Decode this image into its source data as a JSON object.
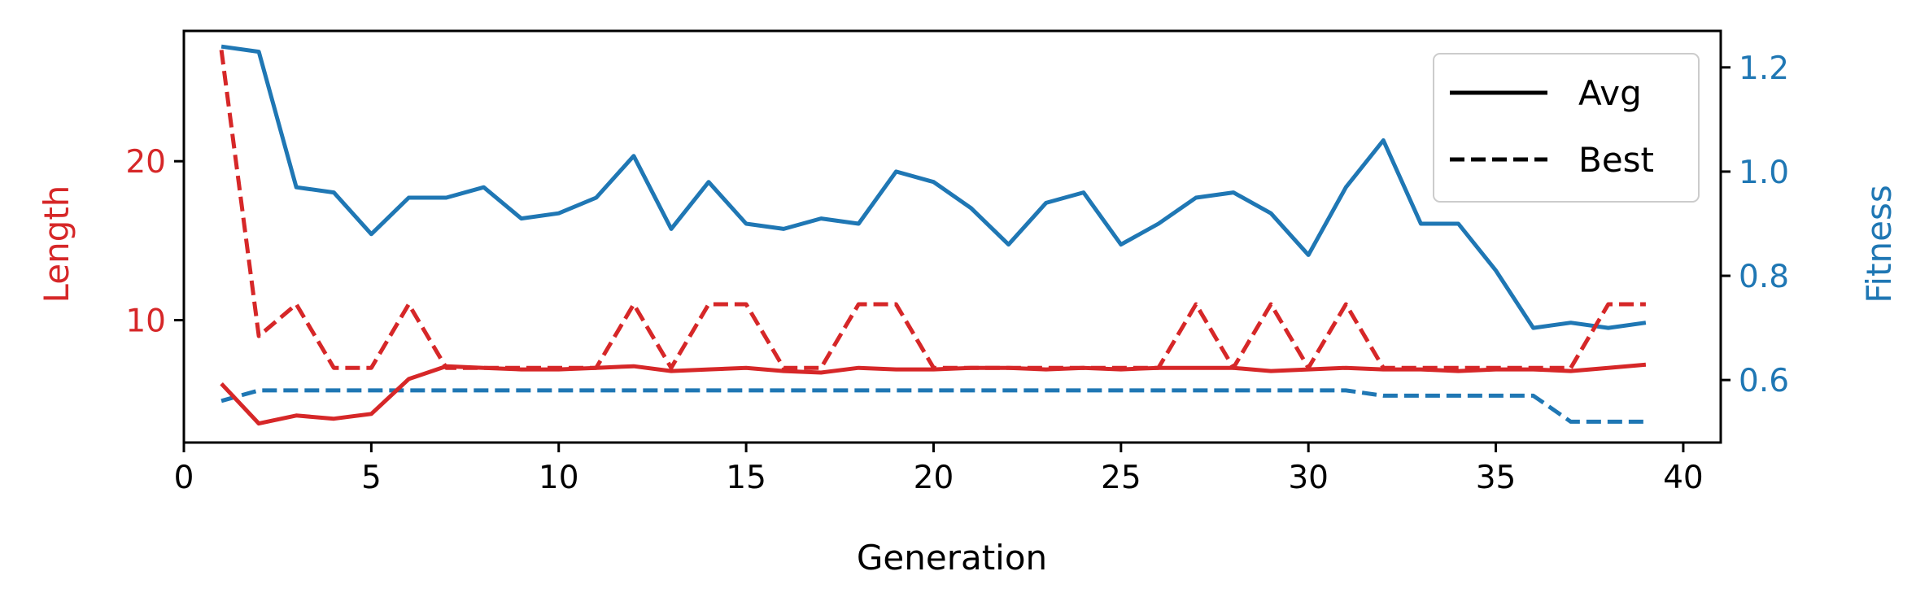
{
  "chart_data": {
    "type": "line",
    "xlabel": "Generation",
    "ylabel_left": "Length",
    "ylabel_right": "Fitness",
    "xlim": [
      0,
      41
    ],
    "ylim_left": [
      2.3,
      28.2
    ],
    "ylim_right": [
      0.48,
      1.27
    ],
    "xticks": [
      0,
      5,
      10,
      15,
      20,
      25,
      30,
      35,
      40
    ],
    "yticks_left": [
      10,
      20
    ],
    "yticks_right": [
      0.6,
      0.8,
      1.0,
      1.2
    ],
    "grid": false,
    "legend": {
      "placement": "top-right",
      "entries": [
        {
          "label": "Avg",
          "style": "solid"
        },
        {
          "label": "Best",
          "style": "dashed"
        }
      ]
    },
    "colors": {
      "length": "#d62728",
      "fitness": "#1f77b4"
    },
    "x": [
      1,
      2,
      3,
      4,
      5,
      6,
      7,
      8,
      9,
      10,
      11,
      12,
      13,
      14,
      15,
      16,
      17,
      18,
      19,
      20,
      21,
      22,
      23,
      24,
      25,
      26,
      27,
      28,
      29,
      30,
      31,
      32,
      33,
      34,
      35,
      36,
      37,
      38,
      39
    ],
    "series": [
      {
        "axis": "left",
        "style": "solid",
        "color": "#d62728",
        "values": [
          6.0,
          3.5,
          4.0,
          3.8,
          4.1,
          6.3,
          7.1,
          7.0,
          6.9,
          6.9,
          7.0,
          7.1,
          6.8,
          6.9,
          7.0,
          6.8,
          6.7,
          7.0,
          6.9,
          6.9,
          7.0,
          7.0,
          6.9,
          7.0,
          6.9,
          7.0,
          7.0,
          7.0,
          6.8,
          6.9,
          7.0,
          6.9,
          6.9,
          6.8,
          6.9,
          6.9,
          6.8,
          7.0,
          7.2
        ]
      },
      {
        "axis": "left",
        "style": "dashed",
        "color": "#d62728",
        "values": [
          27,
          9,
          11,
          7,
          7,
          11,
          7,
          7,
          7,
          7,
          7,
          11,
          7,
          11,
          11,
          7,
          7,
          11,
          11,
          7,
          7,
          7,
          7,
          7,
          7,
          7,
          11,
          7,
          11,
          7,
          11,
          7,
          7,
          7,
          7,
          7,
          7,
          11,
          11
        ]
      },
      {
        "axis": "right",
        "style": "solid",
        "color": "#1f77b4",
        "values": [
          1.24,
          1.23,
          0.97,
          0.96,
          0.88,
          0.95,
          0.95,
          0.97,
          0.91,
          0.92,
          0.95,
          1.03,
          0.89,
          0.98,
          0.9,
          0.89,
          0.91,
          0.9,
          1.0,
          0.98,
          0.93,
          0.86,
          0.94,
          0.96,
          0.86,
          0.9,
          0.95,
          0.96,
          0.92,
          0.84,
          0.97,
          1.06,
          0.9,
          0.9,
          0.81,
          0.7,
          0.71,
          0.7,
          0.71
        ]
      },
      {
        "axis": "right",
        "style": "dashed",
        "color": "#1f77b4",
        "values": [
          0.56,
          0.58,
          0.58,
          0.58,
          0.58,
          0.58,
          0.58,
          0.58,
          0.58,
          0.58,
          0.58,
          0.58,
          0.58,
          0.58,
          0.58,
          0.58,
          0.58,
          0.58,
          0.58,
          0.58,
          0.58,
          0.58,
          0.58,
          0.58,
          0.58,
          0.58,
          0.58,
          0.58,
          0.58,
          0.58,
          0.58,
          0.57,
          0.57,
          0.57,
          0.57,
          0.57,
          0.52,
          0.52,
          0.52
        ]
      }
    ]
  }
}
